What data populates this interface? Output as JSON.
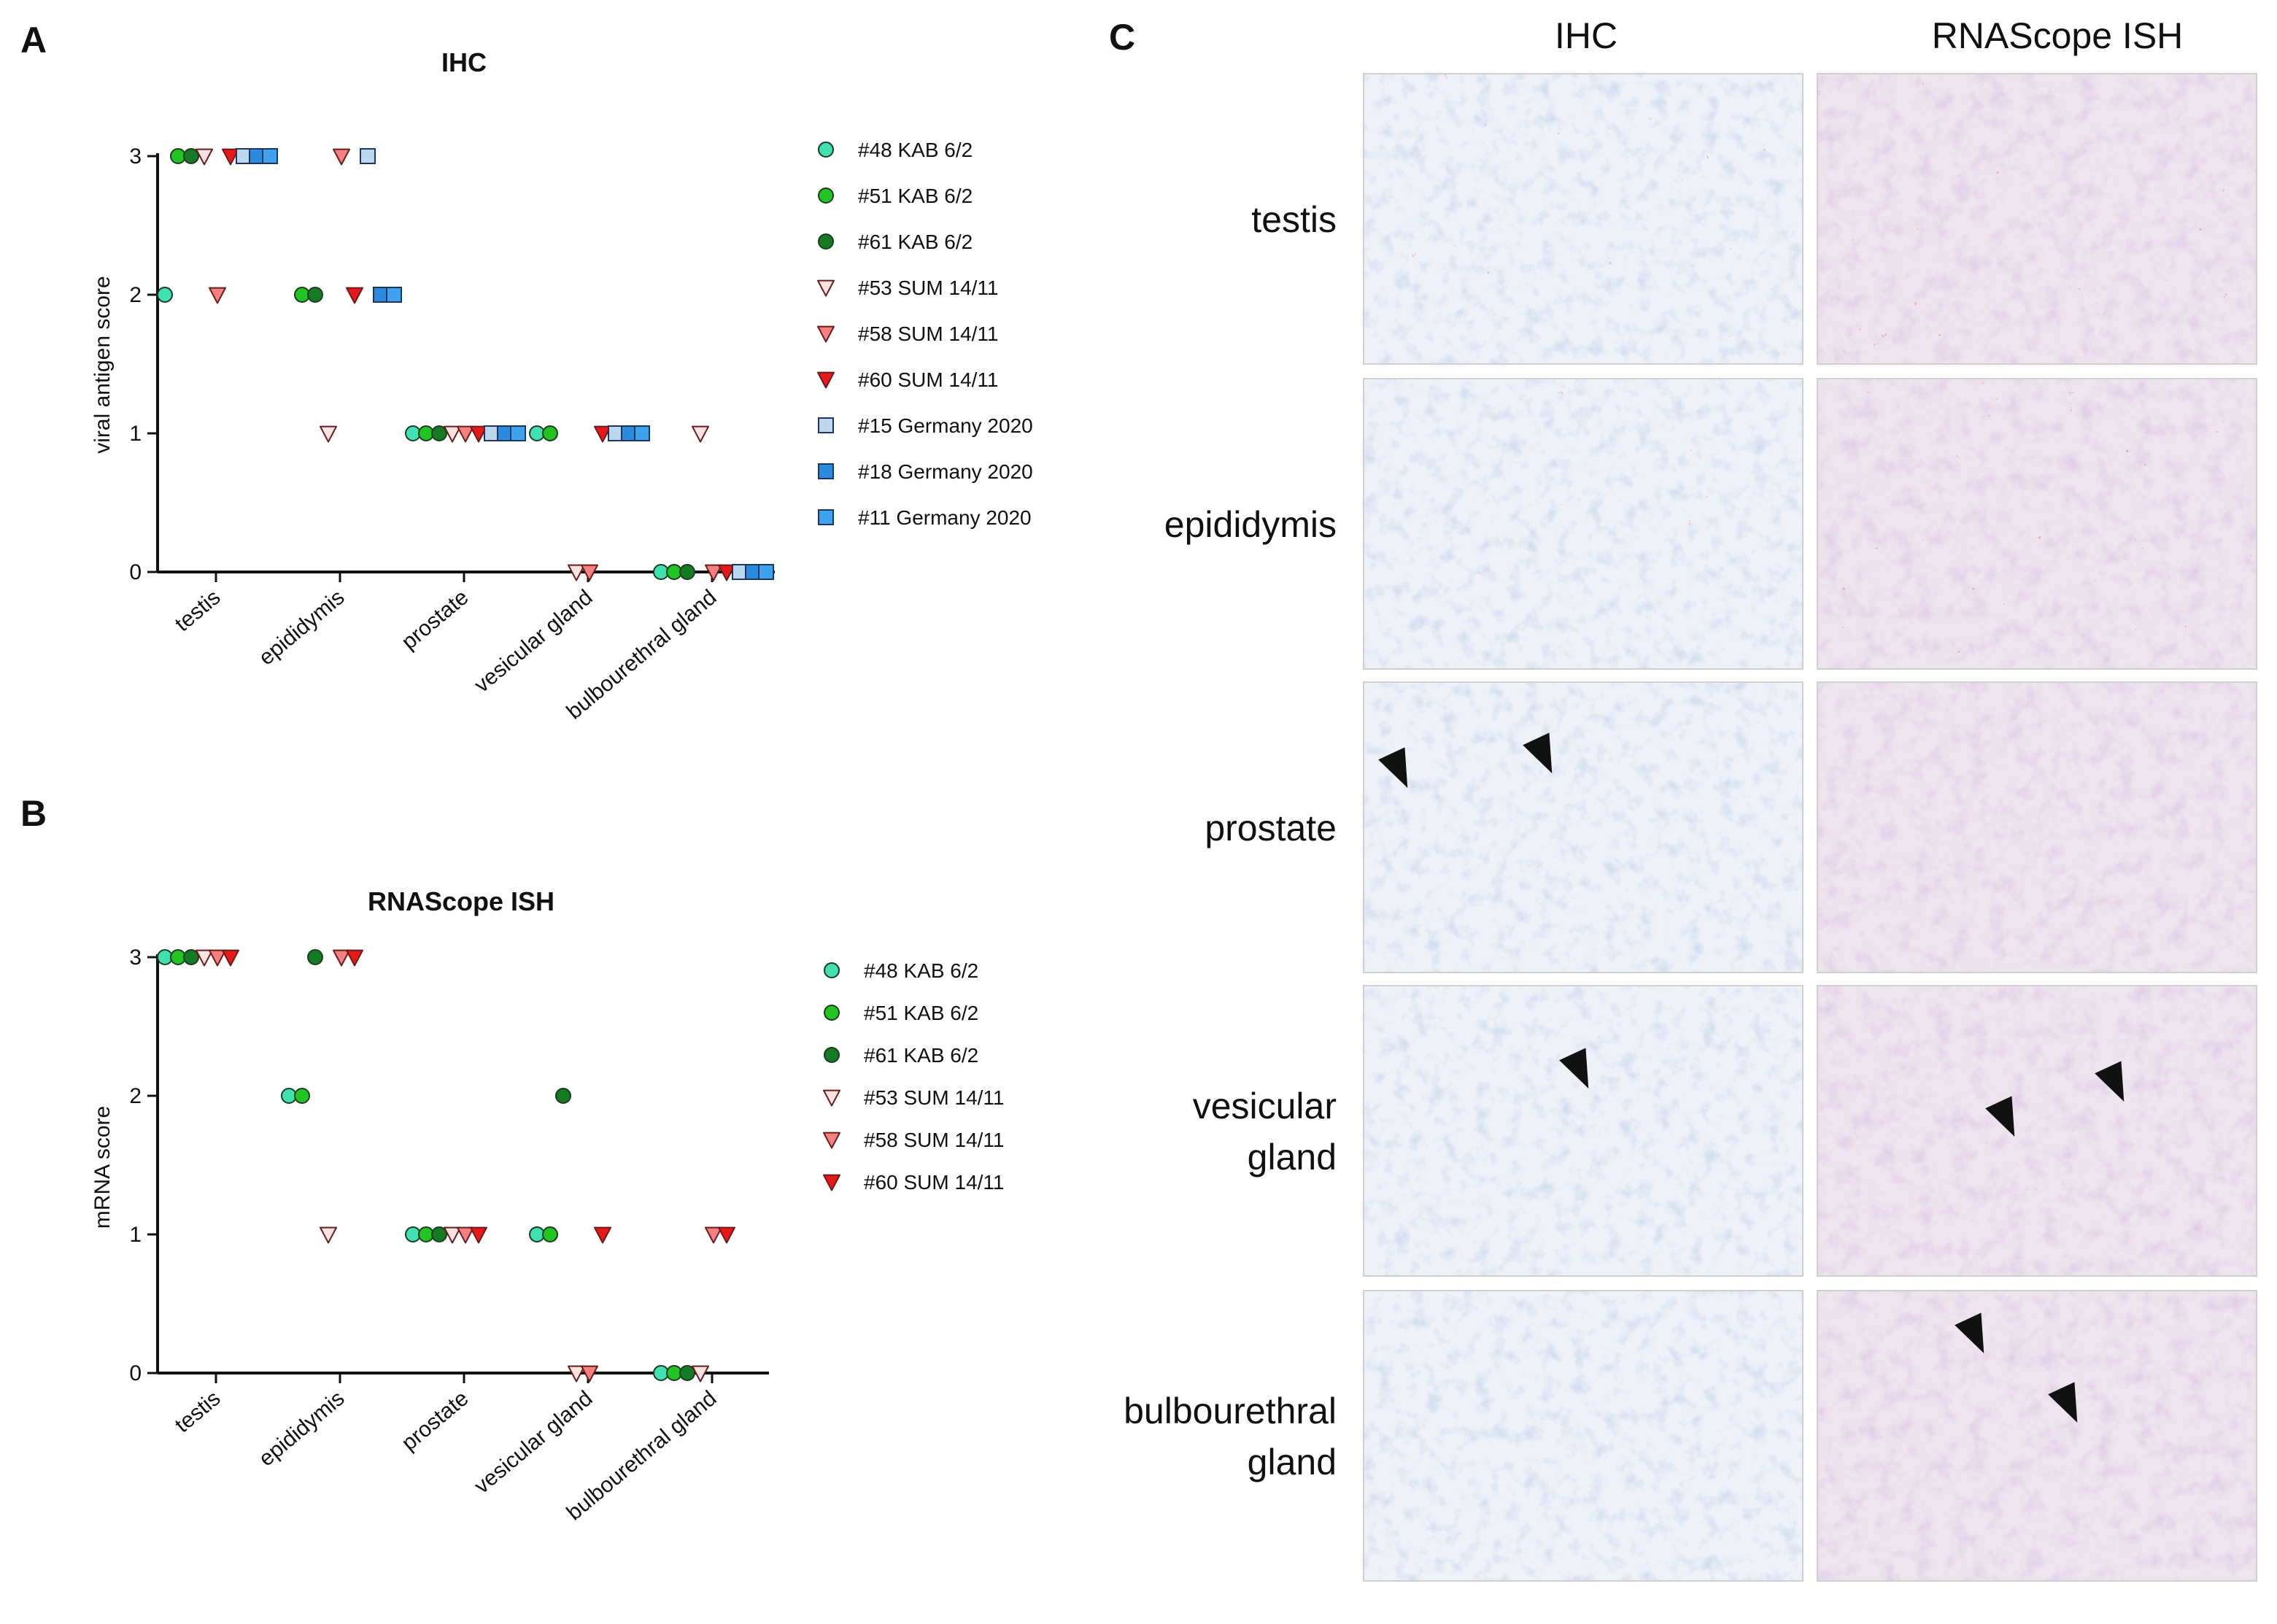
{
  "panels": {
    "a": "A",
    "b": "B",
    "c": "C"
  },
  "colors": {
    "48 KAB": "#40e0b0",
    "51 KAB": "#22c422",
    "61 KAB": "#147a24",
    "53 SUM": "#fbe2e2",
    "58 SUM": "#f48080",
    "60 SUM": "#e81818",
    "15 GER": "#bcd8f0",
    "18 GER": "#2a8ce0",
    "11 GER": "#3ea2ee"
  },
  "chart_data": [
    {
      "type": "scatter",
      "title": "IHC",
      "ylabel": "viral antigen score",
      "xlabel": "",
      "categories": [
        "testis",
        "epididymis",
        "prostate",
        "vesicular gland",
        "bulbourethral gland"
      ],
      "yticks": [
        "0",
        "1",
        "2",
        "3"
      ],
      "ylim": [
        0,
        3
      ],
      "legend_position": "right",
      "series": [
        {
          "name": "#48 KAB 6/2",
          "marker": "circle",
          "color_key": "48 KAB",
          "values": [
            2,
            null,
            1,
            1,
            0
          ]
        },
        {
          "name": "#51 KAB 6/2",
          "marker": "circle",
          "color_key": "51 KAB",
          "values": [
            3,
            2,
            1,
            1,
            0
          ]
        },
        {
          "name": "#61 KAB 6/2",
          "marker": "circle",
          "color_key": "61 KAB",
          "values": [
            3,
            2,
            1,
            null,
            0
          ]
        },
        {
          "name": "#53 SUM 14/11",
          "marker": "triangle",
          "color_key": "53 SUM",
          "values": [
            3,
            1,
            1,
            0,
            1
          ]
        },
        {
          "name": "#58 SUM 14/11",
          "marker": "triangle",
          "color_key": "58 SUM",
          "values": [
            2,
            3,
            1,
            0,
            0
          ]
        },
        {
          "name": "#60 SUM 14/11",
          "marker": "triangle",
          "color_key": "60 SUM",
          "values": [
            3,
            2,
            1,
            1,
            0
          ]
        },
        {
          "name": "#15 Germany 2020",
          "marker": "square",
          "color_key": "15 GER",
          "values": [
            3,
            3,
            1,
            1,
            0
          ]
        },
        {
          "name": "#18 Germany 2020",
          "marker": "square",
          "color_key": "18 GER",
          "values": [
            3,
            2,
            1,
            1,
            0
          ]
        },
        {
          "name": "#11 Germany 2020",
          "marker": "square",
          "color_key": "11 GER",
          "values": [
            3,
            2,
            1,
            1,
            0
          ]
        }
      ]
    },
    {
      "type": "scatter",
      "title": "RNAScope ISH",
      "ylabel": "mRNA score",
      "xlabel": "",
      "categories": [
        "testis",
        "epididymis",
        "prostate",
        "vesicular gland",
        "bulbourethral gland"
      ],
      "yticks": [
        "0",
        "1",
        "2",
        "3"
      ],
      "ylim": [
        0,
        3
      ],
      "legend_position": "right",
      "series": [
        {
          "name": "#48 KAB 6/2",
          "marker": "circle",
          "color_key": "48 KAB",
          "values": [
            3,
            2,
            1,
            1,
            0
          ]
        },
        {
          "name": "#51 KAB 6/2",
          "marker": "circle",
          "color_key": "51 KAB",
          "values": [
            3,
            2,
            1,
            1,
            0
          ]
        },
        {
          "name": "#61 KAB 6/2",
          "marker": "circle",
          "color_key": "61 KAB",
          "values": [
            3,
            3,
            1,
            2,
            0
          ]
        },
        {
          "name": "#53 SUM 14/11",
          "marker": "triangle",
          "color_key": "53 SUM",
          "values": [
            3,
            1,
            1,
            0,
            0
          ]
        },
        {
          "name": "#58 SUM 14/11",
          "marker": "triangle",
          "color_key": "58 SUM",
          "values": [
            3,
            3,
            1,
            0,
            1
          ]
        },
        {
          "name": "#60 SUM 14/11",
          "marker": "triangle",
          "color_key": "60 SUM",
          "values": [
            3,
            3,
            1,
            1,
            1
          ]
        }
      ]
    }
  ],
  "micrographs": {
    "columns": [
      "IHC",
      "RNAScope ISH"
    ],
    "rows": [
      {
        "lines": [
          "testis"
        ]
      },
      {
        "lines": [
          "epididymis"
        ]
      },
      {
        "lines": [
          "prostate"
        ]
      },
      {
        "lines": [
          "vesicular",
          "gland"
        ]
      },
      {
        "lines": [
          "bulbourethral",
          "gland"
        ]
      }
    ]
  }
}
